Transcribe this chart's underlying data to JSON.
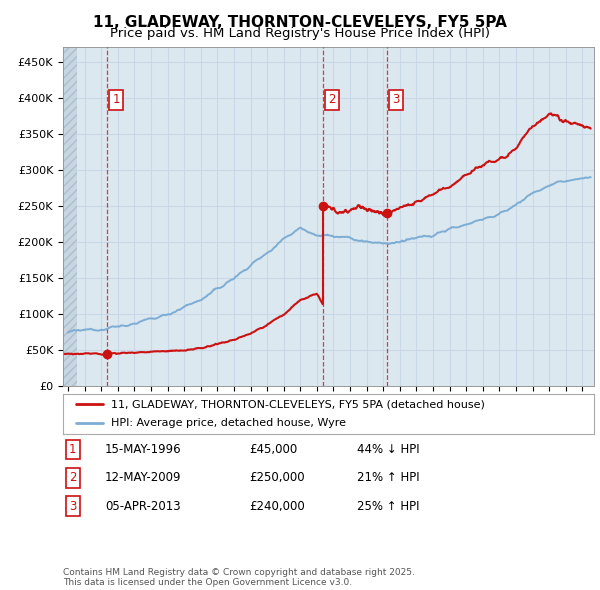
{
  "title": "11, GLADEWAY, THORNTON-CLEVELEYS, FY5 5PA",
  "subtitle": "Price paid vs. HM Land Registry's House Price Index (HPI)",
  "ylabel_ticks": [
    "£0",
    "£50K",
    "£100K",
    "£150K",
    "£200K",
    "£250K",
    "£300K",
    "£350K",
    "£400K",
    "£450K"
  ],
  "ytick_values": [
    0,
    50000,
    100000,
    150000,
    200000,
    250000,
    300000,
    350000,
    400000,
    450000
  ],
  "ylim": [
    0,
    470000
  ],
  "xlim_start": 1993.7,
  "xlim_end": 2025.7,
  "purchases": [
    {
      "date": 1996.37,
      "price": 45000,
      "label": "1"
    },
    {
      "date": 2009.36,
      "price": 250000,
      "label": "2"
    },
    {
      "date": 2013.25,
      "price": 240000,
      "label": "3"
    }
  ],
  "vlines": [
    1996.37,
    2009.36,
    2013.25
  ],
  "hpi_color": "#7dadd4",
  "price_color": "#cc1111",
  "grid_color": "#c8d8e8",
  "background_color": "#ffffff",
  "plot_bg_color": "#dce8f0",
  "legend_entries": [
    "11, GLADEWAY, THORNTON-CLEVELEYS, FY5 5PA (detached house)",
    "HPI: Average price, detached house, Wyre"
  ],
  "table_rows": [
    {
      "num": "1",
      "date": "15-MAY-1996",
      "price": "£45,000",
      "hpi": "44% ↓ HPI"
    },
    {
      "num": "2",
      "date": "12-MAY-2009",
      "price": "£250,000",
      "hpi": "21% ↑ HPI"
    },
    {
      "num": "3",
      "date": "05-APR-2013",
      "price": "£240,000",
      "hpi": "25% ↑ HPI"
    }
  ],
  "footer": "Contains HM Land Registry data © Crown copyright and database right 2025.\nThis data is licensed under the Open Government Licence v3.0.",
  "title_fontsize": 11,
  "subtitle_fontsize": 9.5
}
